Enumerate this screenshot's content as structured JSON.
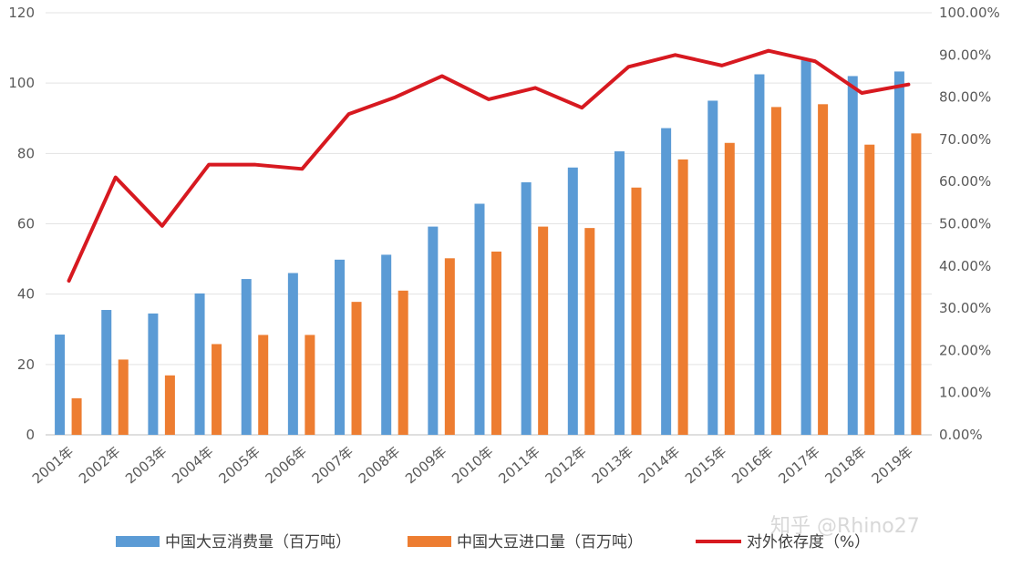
{
  "chart_data": {
    "type": "bar",
    "categories": [
      "2001年",
      "2002年",
      "2003年",
      "2004年",
      "2005年",
      "2006年",
      "2007年",
      "2008年",
      "2009年",
      "2010年",
      "2011年",
      "2012年",
      "2013年",
      "2014年",
      "2015年",
      "2016年",
      "2017年",
      "2018年",
      "2019年"
    ],
    "series": [
      {
        "name": "中国大豆消费量（百万吨）",
        "type": "bar",
        "axis": "left",
        "color": "#5b9bd5",
        "values": [
          28.5,
          35.5,
          34.5,
          40.2,
          44.3,
          46.0,
          49.8,
          51.2,
          59.2,
          65.7,
          71.8,
          76.0,
          80.6,
          87.2,
          95.0,
          102.5,
          106.5,
          102.0,
          103.3
        ]
      },
      {
        "name": "中国大豆进口量（百万吨）",
        "type": "bar",
        "axis": "left",
        "color": "#ed7d31",
        "values": [
          10.4,
          21.4,
          16.9,
          25.8,
          28.4,
          28.4,
          37.8,
          41.0,
          50.2,
          52.1,
          59.2,
          58.8,
          70.3,
          78.3,
          83.0,
          93.2,
          94.0,
          82.5,
          85.7
        ]
      },
      {
        "name": "对外依存度（%）",
        "type": "line",
        "axis": "right",
        "color": "#d71920",
        "values": [
          0.365,
          0.61,
          0.495,
          0.64,
          0.64,
          0.63,
          0.76,
          0.8,
          0.85,
          0.795,
          0.822,
          0.775,
          0.872,
          0.9,
          0.875,
          0.91,
          0.885,
          0.81,
          0.83
        ]
      }
    ],
    "ylim": [
      0,
      120
    ],
    "yticks": [
      "0",
      "20",
      "40",
      "60",
      "80",
      "100",
      "120"
    ],
    "y2lim": [
      0,
      1
    ],
    "y2ticks": [
      "0.00%",
      "10.00%",
      "20.00%",
      "30.00%",
      "40.00%",
      "50.00%",
      "60.00%",
      "70.00%",
      "80.00%",
      "90.00%",
      "100.00%"
    ],
    "grid": true,
    "legend_position": "bottom"
  },
  "watermark": "知乎 @Rhino27"
}
